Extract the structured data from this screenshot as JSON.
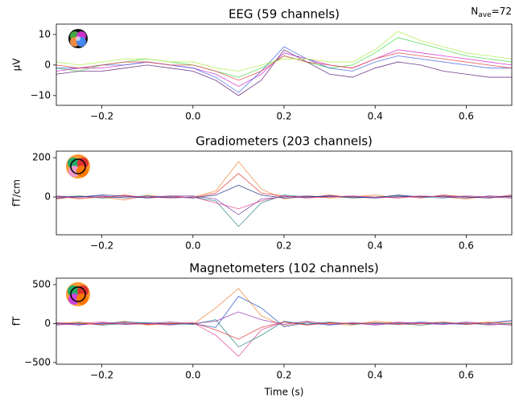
{
  "chart_data": [
    {
      "type": "line",
      "title": "EEG (59 channels)",
      "y_label": "µV",
      "annotation": {
        "text": "N",
        "subscript": "ave",
        "suffix": "=72"
      },
      "x": [
        -0.3,
        -0.25,
        -0.2,
        -0.15,
        -0.1,
        -0.05,
        0,
        0.05,
        0.1,
        0.15,
        0.2,
        0.25,
        0.3,
        0.35,
        0.4,
        0.45,
        0.5,
        0.55,
        0.6,
        0.65,
        0.7
      ],
      "xlim": [
        -0.3,
        0.7
      ],
      "xticks": [
        {
          "value": -0.2,
          "label": "−0.2"
        },
        {
          "value": 0,
          "label": "0.0"
        },
        0.2,
        0.4,
        0.6
      ],
      "ylim": [
        -13.2,
        13.4
      ],
      "yticks": [
        {
          "value": -10,
          "label": "−10"
        },
        0,
        10
      ],
      "series": [
        {
          "color": "#44dd44",
          "values": [
            -1,
            -2,
            0,
            1,
            2,
            1,
            0,
            -2,
            -4,
            -1,
            3,
            1,
            -1,
            0,
            4,
            9,
            7,
            5,
            3,
            2,
            1
          ]
        },
        {
          "color": "#cc22cc",
          "values": [
            -2,
            -1,
            -1,
            0,
            1,
            0,
            -1,
            -3,
            -7,
            -3,
            4,
            2,
            0,
            -1,
            2,
            5,
            4,
            3,
            2,
            1,
            0
          ]
        },
        {
          "color": "#5a1a78",
          "values": [
            -3,
            -2,
            -2,
            -1,
            0,
            -1,
            -2,
            -5,
            -10,
            -5,
            5,
            1,
            -3,
            -4,
            -1,
            1,
            0,
            -2,
            -3,
            -4,
            -4
          ]
        },
        {
          "color": "#4060e0",
          "values": [
            -1,
            -1,
            0,
            0,
            1,
            0,
            -1,
            -4,
            -9,
            -2,
            6,
            2,
            -1,
            -2,
            1,
            3,
            2,
            1,
            0,
            -1,
            -1
          ]
        },
        {
          "color": "#e04040",
          "values": [
            0,
            -1,
            0,
            1,
            1,
            0,
            0,
            -2,
            -5,
            -2,
            3,
            1,
            0,
            -1,
            2,
            4,
            3,
            2,
            1,
            0,
            -1
          ]
        },
        {
          "color": "#aaee44",
          "values": [
            1,
            0,
            1,
            2,
            2,
            1,
            1,
            -1,
            -2,
            0,
            2,
            2,
            1,
            1,
            5,
            11,
            8,
            6,
            4,
            3,
            2
          ]
        }
      ]
    },
    {
      "type": "line",
      "title": "Gradiometers (203 channels)",
      "y_label": "fT/cm",
      "x": [
        -0.3,
        -0.25,
        -0.2,
        -0.15,
        -0.1,
        -0.05,
        0,
        0.05,
        0.1,
        0.15,
        0.2,
        0.25,
        0.3,
        0.35,
        0.4,
        0.45,
        0.5,
        0.55,
        0.6,
        0.65,
        0.7
      ],
      "xlim": [
        -0.3,
        0.7
      ],
      "xticks": [
        {
          "value": -0.2,
          "label": "−0.2"
        },
        {
          "value": 0,
          "label": "0.0"
        },
        0.2,
        0.4,
        0.6
      ],
      "ylim": [
        -192,
        233
      ],
      "yticks": [
        0,
        200
      ],
      "series": [
        {
          "color": "#f08030",
          "values": [
            5,
            -10,
            0,
            -15,
            10,
            -5,
            0,
            30,
            180,
            40,
            -10,
            5,
            -5,
            0,
            10,
            -5,
            5,
            0,
            -10,
            5,
            0
          ]
        },
        {
          "color": "#e03030",
          "values": [
            -10,
            5,
            -5,
            10,
            -5,
            5,
            -5,
            20,
            120,
            20,
            5,
            -5,
            10,
            -5,
            0,
            5,
            -5,
            10,
            0,
            -5,
            10
          ]
        },
        {
          "color": "#208080",
          "values": [
            0,
            5,
            -5,
            0,
            5,
            -5,
            0,
            -20,
            -150,
            -30,
            10,
            0,
            5,
            -5,
            0,
            5,
            0,
            -5,
            5,
            0,
            -5
          ]
        },
        {
          "color": "#7030a0",
          "values": [
            5,
            0,
            5,
            -5,
            0,
            5,
            5,
            -10,
            -90,
            -10,
            0,
            5,
            0,
            5,
            -5,
            0,
            5,
            0,
            -5,
            5,
            0
          ]
        },
        {
          "color": "#203080",
          "values": [
            -5,
            0,
            10,
            5,
            -5,
            0,
            -5,
            10,
            60,
            10,
            -5,
            0,
            5,
            0,
            -5,
            10,
            0,
            5,
            0,
            -5,
            5
          ]
        },
        {
          "color": "#e04090",
          "values": [
            0,
            -5,
            0,
            5,
            0,
            -5,
            0,
            -30,
            -60,
            -20,
            5,
            -5,
            0,
            5,
            0,
            -5,
            5,
            0,
            5,
            0,
            -5
          ]
        }
      ]
    },
    {
      "type": "line",
      "title": "Magnetometers (102 channels)",
      "y_label": "fT",
      "x_label": "Time (s)",
      "x": [
        -0.3,
        -0.25,
        -0.2,
        -0.15,
        -0.1,
        -0.05,
        0,
        0.05,
        0.1,
        0.15,
        0.2,
        0.25,
        0.3,
        0.35,
        0.4,
        0.45,
        0.5,
        0.55,
        0.6,
        0.65,
        0.7
      ],
      "xlim": [
        -0.3,
        0.7
      ],
      "xticks": [
        {
          "value": -0.2,
          "label": "−0.2"
        },
        {
          "value": 0,
          "label": "0.0"
        },
        0.2,
        0.4,
        0.6
      ],
      "ylim": [
        -521,
        582
      ],
      "yticks": [
        {
          "value": -500,
          "label": "−500"
        },
        0,
        500
      ],
      "series": [
        {
          "color": "#f08030",
          "values": [
            0,
            20,
            -10,
            30,
            -20,
            10,
            -10,
            200,
            450,
            100,
            -30,
            20,
            0,
            -20,
            30,
            10,
            -20,
            10,
            0,
            20,
            -10
          ]
        },
        {
          "color": "#e04090",
          "values": [
            -20,
            0,
            20,
            -10,
            0,
            -20,
            10,
            -150,
            -420,
            -80,
            20,
            -10,
            10,
            0,
            -10,
            20,
            0,
            -10,
            10,
            -20,
            0
          ]
        },
        {
          "color": "#2050c0",
          "values": [
            10,
            -10,
            0,
            20,
            10,
            -10,
            0,
            -50,
            350,
            200,
            -40,
            10,
            -20,
            10,
            0,
            -10,
            20,
            0,
            -10,
            10,
            40
          ]
        },
        {
          "color": "#208080",
          "values": [
            -10,
            10,
            -20,
            0,
            10,
            0,
            -10,
            50,
            -300,
            -150,
            30,
            -10,
            20,
            -10,
            10,
            0,
            -20,
            10,
            0,
            -10,
            0
          ]
        },
        {
          "color": "#9030b0",
          "values": [
            0,
            -20,
            10,
            -10,
            0,
            20,
            0,
            30,
            150,
            50,
            -10,
            30,
            -10,
            10,
            -20,
            10,
            10,
            -10,
            20,
            0,
            -20
          ]
        },
        {
          "color": "#e03030",
          "values": [
            10,
            0,
            -10,
            10,
            -10,
            0,
            10,
            -80,
            -200,
            -50,
            20,
            -20,
            10,
            0,
            10,
            -10,
            0,
            20,
            -10,
            10,
            20
          ]
        }
      ]
    }
  ]
}
